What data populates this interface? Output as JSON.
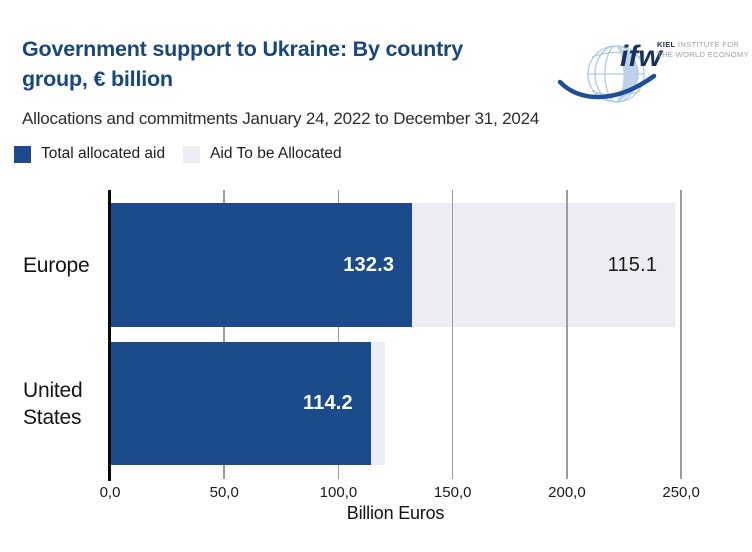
{
  "header": {
    "title_line1": "Government support to Ukraine: By country",
    "title_line2": "group, € billion",
    "title_color": "#17477E",
    "subtitle": "Allocations and commitments January 24, 2022 to December 31, 2024"
  },
  "logo": {
    "mark": "ifw",
    "line1_bold": "KIEL",
    "line1_rest": " INSTITUTE FOR",
    "line2": "THE WORLD ECONOMY",
    "navy": "#16335F",
    "gray": "#99A1A9",
    "globe_blue": "#AFC9E6",
    "globe_fill": "#B7CEE9",
    "swoosh_blue": "#1F4E96"
  },
  "legend": {
    "items": [
      {
        "label": "Total allocated aid",
        "color": "#1B4A8D"
      },
      {
        "label": "Aid To be Allocated",
        "color": "#EBEDF3"
      }
    ]
  },
  "chart_data": {
    "type": "bar",
    "orientation": "horizontal",
    "stacked": true,
    "title": "Government support to Ukraine: By country group, € billion",
    "subtitle": "Allocations and commitments January 24, 2022 to December 31, 2024",
    "categories": [
      "Europe",
      "United States"
    ],
    "series": [
      {
        "name": "Total allocated aid",
        "color": "#1B4A8D",
        "values": [
          132.3,
          114.2
        ],
        "value_labels": [
          "132.3",
          "114.2"
        ],
        "label_color": "#FFFFFF"
      },
      {
        "name": "Aid To be Allocated",
        "color": "#EBEDF3",
        "values": [
          115.1,
          6.0
        ],
        "value_labels": [
          "115.1",
          ""
        ],
        "label_color": "#1A1A1A"
      }
    ],
    "xlabel": "Billion Euros",
    "xlim": [
      0,
      260
    ],
    "xticks": [
      0,
      50,
      100,
      150,
      200,
      250
    ],
    "xtick_labels": [
      "0,0",
      "50,0",
      "100,0",
      "150,0",
      "200,0",
      "250,0"
    ],
    "grid": "vertical",
    "grid_color": "#9C9C9C",
    "axis_color": "#0A0A0A",
    "legend_position": "top-left"
  }
}
